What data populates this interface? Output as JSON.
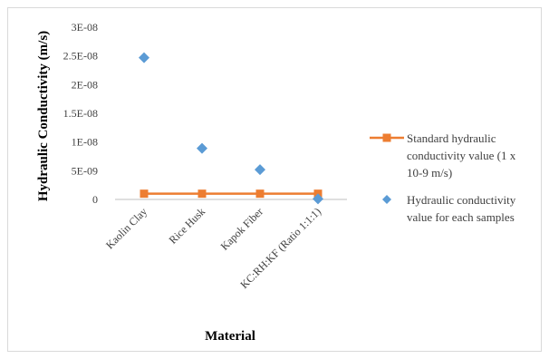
{
  "chart_data": {
    "type": "scatter",
    "categories": [
      "Kaolin Clay",
      "Rice Husk",
      "Kapok Fiber",
      "KC:RH:KF (Ratio 1:1:1)"
    ],
    "series": [
      {
        "name": "Standard hydraulic conductivity value (1 x 10-9 m/s)",
        "kind": "line",
        "color": "#ed7d31",
        "marker": "square",
        "values": [
          1e-09,
          1e-09,
          1e-09,
          1e-09
        ],
        "legend_lines": [
          "Standard hydraulic",
          "conductivity value (1 x",
          "10-9 m/s)"
        ]
      },
      {
        "name": "Hydraulic conductivity value for each samples",
        "kind": "scatter",
        "color": "#5b9bd5",
        "marker": "diamond",
        "values": [
          2.47e-08,
          8.9e-09,
          5.2e-09,
          1e-10
        ],
        "legend_lines": [
          "Hydraulic conductivity",
          "value for each samples"
        ]
      }
    ],
    "xlabel": "Material",
    "ylabel": "Hydraulic Conductivity (m/s)",
    "ylim": [
      0,
      3e-08
    ],
    "yticks": [
      0,
      5e-09,
      1e-08,
      1.5e-08,
      2e-08,
      2.5e-08,
      3e-08
    ],
    "ytick_labels": [
      "0",
      "5E-09",
      "1E-08",
      "1.5E-08",
      "2E-08",
      "2.5E-08",
      "3E-08"
    ],
    "grid": false,
    "legend_position": "right"
  }
}
